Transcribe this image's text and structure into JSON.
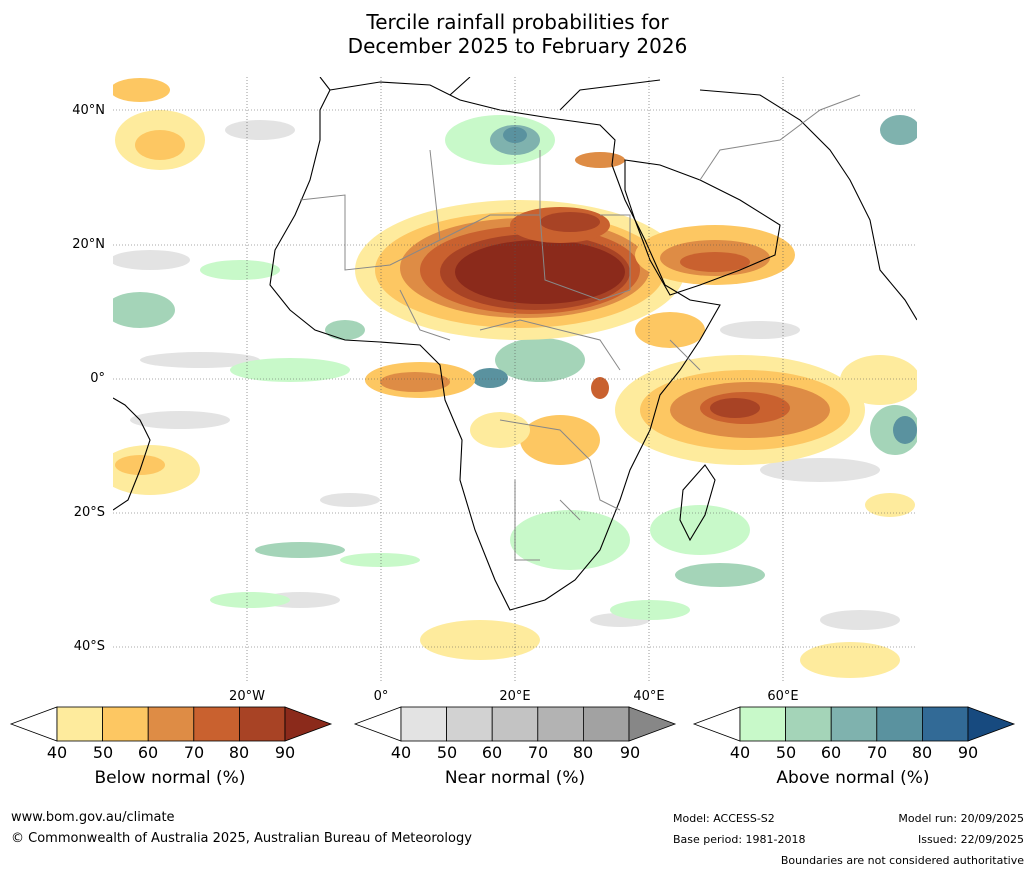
{
  "title": {
    "line1": "Tercile rainfall probabilities for",
    "line2": "December 2025 to February 2026"
  },
  "map": {
    "lat_labels": [
      "40°N",
      "20°N",
      "0°",
      "20°S",
      "40°S"
    ],
    "lon_labels": [
      "20°W",
      "0°",
      "20°E",
      "40°E",
      "60°E"
    ]
  },
  "colorbars": {
    "ticks": [
      "40",
      "50",
      "60",
      "70",
      "80",
      "90"
    ],
    "below": {
      "label": "Below normal (%)",
      "colors": [
        "#ffffff",
        "#feeb9d",
        "#fdc762",
        "#de8c45",
        "#c9612f",
        "#a84325",
        "#8b2a1b"
      ]
    },
    "near": {
      "label": "Near normal (%)",
      "colors": [
        "#ffffff",
        "#e3e3e3",
        "#d2d2d2",
        "#c3c3c3",
        "#b3b3b3",
        "#a2a2a2",
        "#878787"
      ]
    },
    "above": {
      "label": "Above normal (%)",
      "colors": [
        "#ffffff",
        "#c8f9c9",
        "#a4d4b8",
        "#7fb2ae",
        "#5a929f",
        "#326a96",
        "#174a7f"
      ]
    }
  },
  "footer": {
    "website": "www.bom.gov.au/climate",
    "copyright": "© Commonwealth of Australia 2025, Australian Bureau of Meteorology",
    "model": "Model: ACCESS-S2",
    "base_period": "Base period: 1981-2018",
    "model_run": "Model run: 20/09/2025",
    "issued": "Issued: 22/09/2025",
    "disclaimer": "Boundaries are not considered authoritative"
  }
}
